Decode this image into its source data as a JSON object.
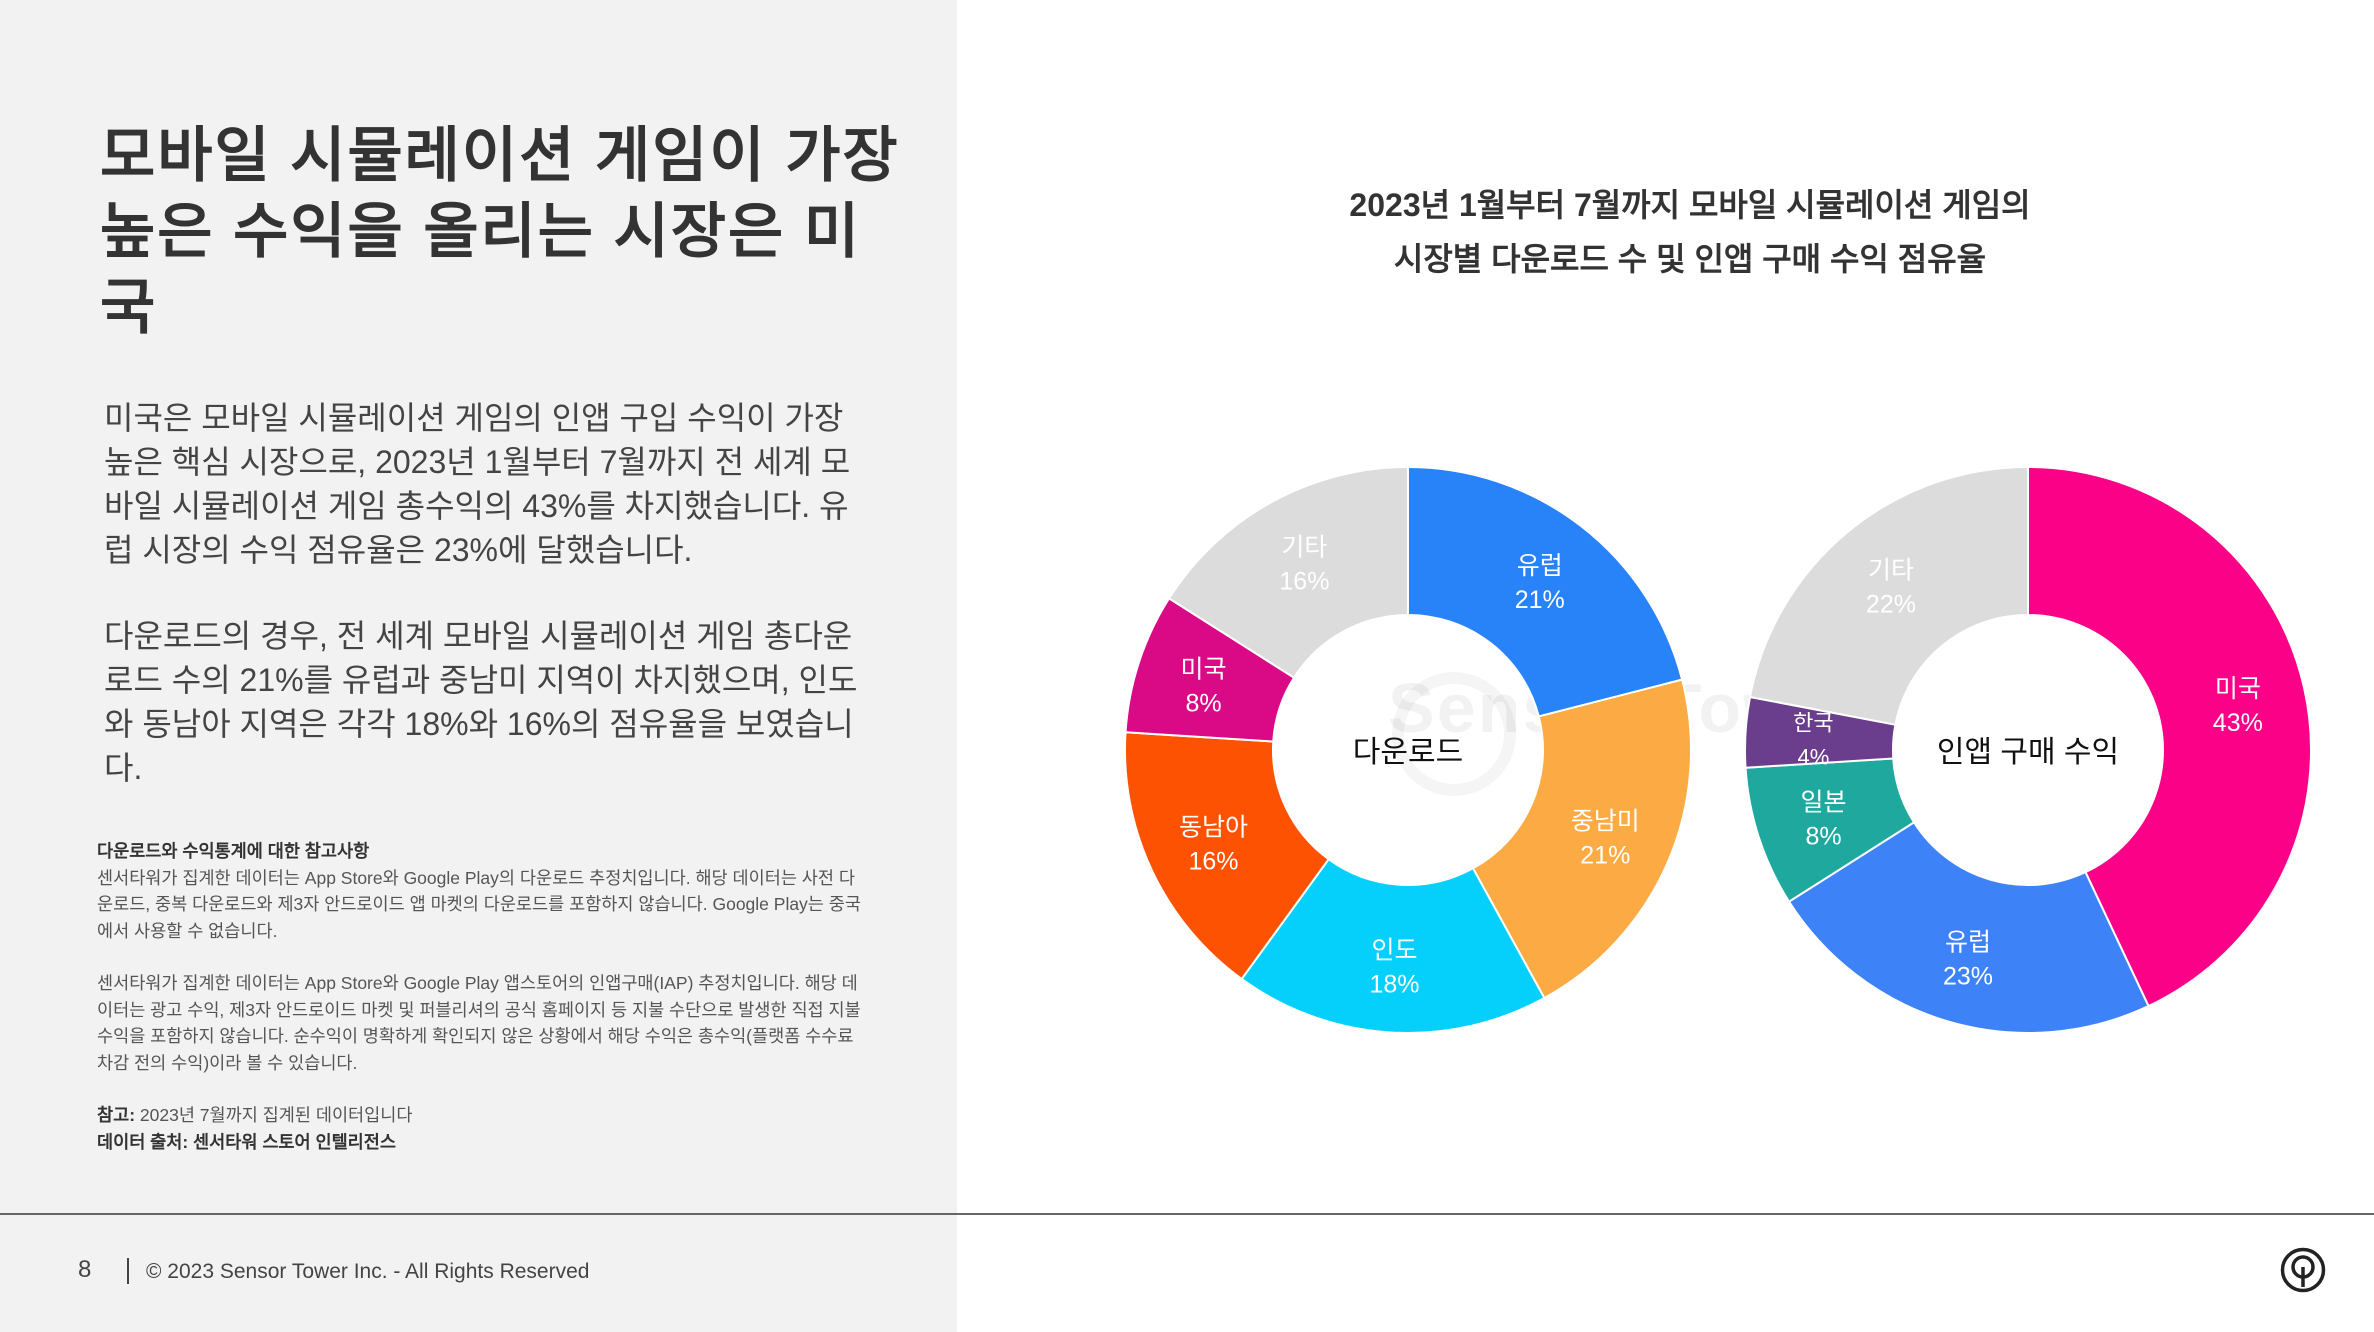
{
  "headline": "모바일 시뮬레이션 게임이 가장\n높은 수익을 올리는 시장은 미국",
  "body_paragraphs": [
    "미국은 모바일 시뮬레이션 게임의 인앱 구입 수익이 가장 높은 핵심 시장으로, 2023년 1월부터 7월까지 전 세계 모바일 시뮬레이션 게임 총수익의 43%를 차지했습니다. 유럽 시장의 수익 점유율은 23%에 달했습니다.",
    "다운로드의 경우, 전 세계 모바일 시뮬레이션 게임 총다운로드 수의 21%를 유럽과 중남미 지역이 차지했으며, 인도와 동남아 지역은 각각 18%와 16%의 점유율을 보였습니다."
  ],
  "notes": {
    "heading": "다운로드와 수익통계에 대한 참고사항",
    "paragraph1": "센서타워가 집계한 데이터는 App Store와 Google Play의 다운로드 추정치입니다. 해당 데이터는 사전 다운로드, 중복 다운로드와 제3자 안드로이드 앱 마켓의 다운로드를 포함하지 않습니다. Google Play는 중국에서 사용할 수 없습니다.",
    "paragraph2": "센서타워가 집계한 데이터는 App Store와 Google Play 앱스토어의 인앱구매(IAP) 추정치입니다. 해당 데이터는 광고 수익, 제3자 안드로이드 마켓 및 퍼블리셔의 공식 홈페이지 등 지불 수단으로 발생한 직접 지불 수익을 포함하지 않습니다. 순수익이 명확하게 확인되지 않은 상황에서 해당 수익은 총수익(플랫폼 수수료 차감 전의 수익)이라 볼 수 있습니다.",
    "ref_label": "참고:",
    "ref_text": " 2023년 7월까지 집계된 데이터입니다",
    "source": "데이터 출처: 센서타워 스토어 인텔리전스"
  },
  "footer": {
    "page_number": "8",
    "copyright": "© 2023 Sensor Tower Inc. - All Rights Reserved"
  },
  "watermark": "Sensor Tower",
  "chart_title_lines": [
    "2023년 1월부터 7월까지 모바일 시뮬레이션 게임의",
    "시장별 다운로드 수 및 인앱 구매 수익 점유율"
  ],
  "chart_data": [
    {
      "type": "pie",
      "center_label": "다운로드",
      "slices": [
        {
          "label": "유럽",
          "value": 21,
          "display": "21%",
          "color": "#2882f8"
        },
        {
          "label": "중남미",
          "value": 21,
          "display": "21%",
          "color": "#fcaa44"
        },
        {
          "label": "인도",
          "value": 18,
          "display": "18%",
          "color": "#05d0fb"
        },
        {
          "label": "동남아",
          "value": 16,
          "display": "16%",
          "color": "#fe5203"
        },
        {
          "label": "미국",
          "value": 8,
          "display": "8%",
          "color": "#da0a86"
        },
        {
          "label": "기타",
          "value": 16,
          "display": "16%",
          "color": "#dcdcdc"
        }
      ]
    },
    {
      "type": "pie",
      "center_label": "인앱 구매 수익",
      "slices": [
        {
          "label": "미국",
          "value": 43,
          "display": "43%",
          "color": "#fa0187"
        },
        {
          "label": "유럽",
          "value": 23,
          "display": "23%",
          "color": "#3d82f7"
        },
        {
          "label": "일본",
          "value": 8,
          "display": "8%",
          "color": "#1ea89e"
        },
        {
          "label": "한국",
          "value": 4,
          "display": "4%",
          "color": "#6a3e8c"
        },
        {
          "label": "기타",
          "value": 22,
          "display": "22%",
          "color": "#dcdcdc"
        }
      ]
    }
  ]
}
